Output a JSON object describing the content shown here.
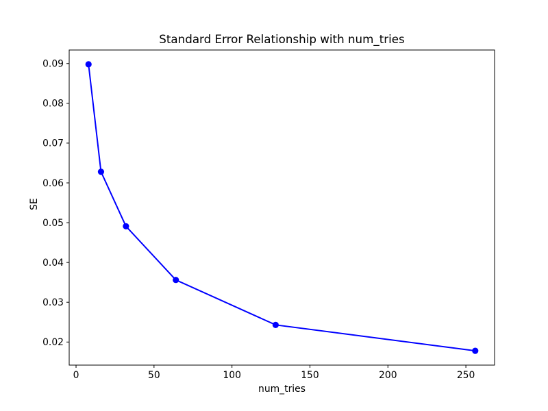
{
  "chart_data": {
    "type": "line",
    "title": "Standard Error Relationship with num_tries",
    "xlabel": "num_tries",
    "ylabel": "SE",
    "x": [
      8,
      16,
      32,
      64,
      128,
      256
    ],
    "y": [
      0.0898,
      0.0628,
      0.0491,
      0.0356,
      0.0243,
      0.0178
    ],
    "xticks": [
      0,
      50,
      100,
      150,
      200,
      250
    ],
    "yticks": [
      0.02,
      0.03,
      0.04,
      0.05,
      0.06,
      0.07,
      0.08,
      0.09
    ],
    "xlim": [
      -4.4,
      268.4
    ],
    "ylim": [
      0.0142,
      0.0934
    ],
    "grid": false,
    "legend": "none",
    "line_color": "#0000ff",
    "marker": "circle",
    "background_color": "#ffffff",
    "spine_color": "#000000"
  }
}
